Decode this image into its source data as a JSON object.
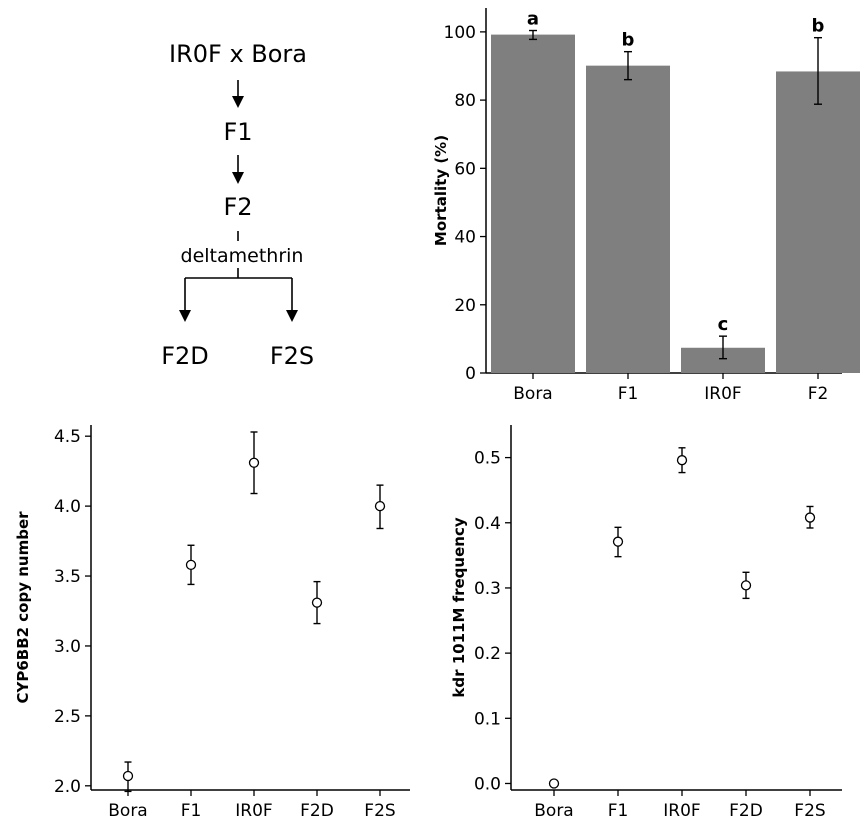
{
  "scheme": {
    "cross": "IR0F x Bora",
    "f1": "F1",
    "f2": "F2",
    "treatment": "deltamethrin",
    "left_branch": "F2D",
    "right_branch": "F2S"
  },
  "chart_data": [
    {
      "type": "bar",
      "categories": [
        "Bora",
        "F1",
        "IR0F",
        "F2"
      ],
      "values": [
        99.2,
        90.1,
        7.4,
        88.4
      ],
      "error_low": [
        97.8,
        86.0,
        4.2,
        78.8
      ],
      "error_high": [
        100.4,
        94.2,
        10.8,
        98.3
      ],
      "significance": [
        "a",
        "b",
        "c",
        "b"
      ],
      "ylabel": "Mortality  (%)",
      "xlabel": "",
      "ylim": [
        0,
        107
      ],
      "yticks": [
        "0",
        "20",
        "40",
        "60",
        "80",
        "100"
      ],
      "colors": {
        "bar": "#7f7f7f"
      },
      "grid": false
    },
    {
      "type": "scatter",
      "categories": [
        "Bora",
        "F1",
        "IR0F",
        "F2D",
        "F2S"
      ],
      "values": [
        2.07,
        3.58,
        4.31,
        3.31,
        4.0
      ],
      "error_low": [
        1.96,
        3.44,
        4.09,
        3.16,
        3.84
      ],
      "error_high": [
        2.17,
        3.72,
        4.53,
        3.46,
        4.15
      ],
      "ylabel": "CYP6BB2 copy number",
      "xlabel": "",
      "ylim": [
        1.97,
        4.58
      ],
      "yticks": [
        "2.0",
        "2.5",
        "3.0",
        "3.5",
        "4.0",
        "4.5"
      ],
      "grid": false
    },
    {
      "type": "scatter",
      "categories": [
        "Bora",
        "F1",
        "IR0F",
        "F2D",
        "F2S"
      ],
      "values": [
        0.0,
        0.371,
        0.496,
        0.304,
        0.408
      ],
      "error_low": [
        0.0,
        0.348,
        0.477,
        0.284,
        0.392
      ],
      "error_high": [
        0.0,
        0.393,
        0.515,
        0.324,
        0.425
      ],
      "ylabel": "kdr  1011M frequency",
      "xlabel": "",
      "ylim": [
        -0.01,
        0.55
      ],
      "yticks": [
        "0.0",
        "0.1",
        "0.2",
        "0.3",
        "0.4",
        "0.5"
      ],
      "grid": false
    }
  ]
}
